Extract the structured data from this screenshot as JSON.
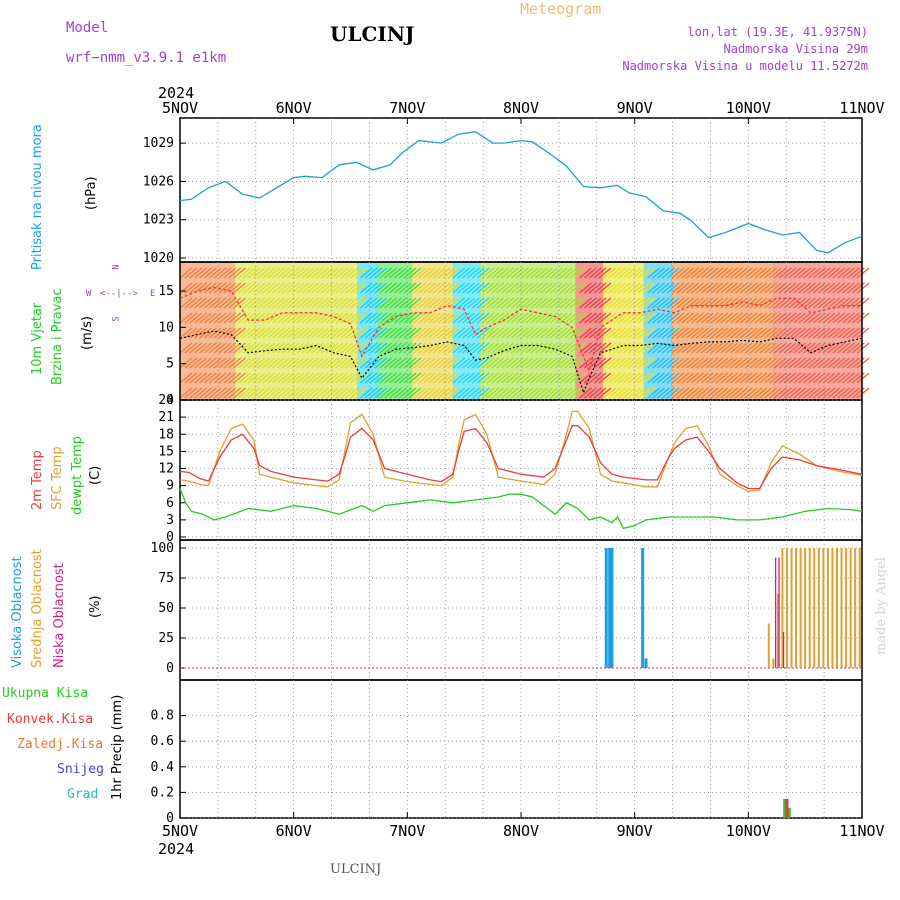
{
  "header": {
    "model_label": "Model",
    "model_name": "wrf−nmm_v3.9.1  e1km",
    "station": "ULCINJ",
    "meteogram": "Meteogram",
    "lonlat": "lon,lat (19.3E, 41.9375N)",
    "elev": "Nadmorska Visina 29m",
    "elev_model": "Nadmorska Visina u modelu 11.5272m",
    "year_top": "2024",
    "year_bottom": "2024",
    "footer_station": "ULCINJ",
    "made_by": "made by Angel"
  },
  "colors": {
    "pressure": "#1a9fe0",
    "wind_speed": "#000000",
    "gust": "#e83c3c",
    "temp2m": "#e83c3c",
    "sfc_temp": "#e0a030",
    "dewpt": "#22cc22",
    "cloud_high": "#1a9fe0",
    "cloud_mid": "#e0a030",
    "cloud_low": "#cc2288",
    "precip_total": "#22cc22",
    "precip_conv": "#e83c3c",
    "model_purple": "#a040d0",
    "meteogram_gold": "#e8c070"
  },
  "side_labels": {
    "pressure": [
      "Pritisak na nivou mora",
      "(hPa)"
    ],
    "wind": [
      "10m Vjetar",
      "Brzina i Pravac",
      "(m/s)"
    ],
    "temp": [
      "2m Temp",
      "SFC Temp",
      "dewpt Temp",
      "(C)"
    ],
    "cloud": [
      "Visoka Oblacnost",
      "Srednja Oblacnost",
      "Niska Oblacnost",
      "(%)"
    ],
    "precip_legend": [
      "Ukupna Kisa",
      "Konvek.Kisa",
      "Zaledj.Kisa",
      "Snijeg",
      "Grad"
    ],
    "precip_axis": "1hr Precip (mm)",
    "compass": [
      "N",
      "W",
      "E",
      "S"
    ]
  },
  "chart_data": [
    {
      "type": "line",
      "panel": "pressure",
      "x_ticks": [
        "5NOV",
        "6NOV",
        "7NOV",
        "8NOV",
        "9NOV",
        "10NOV",
        "11NOV"
      ],
      "xlim": [
        0,
        6
      ],
      "ylim": [
        1020,
        1030.5
      ],
      "y_ticks": [
        1020,
        1023,
        1026,
        1029
      ],
      "series": [
        {
          "x": [
            0,
            0.1,
            0.25,
            0.4,
            0.55,
            0.7,
            0.85,
            1.0,
            1.1,
            1.25,
            1.4,
            1.55,
            1.7,
            1.85,
            1.95,
            2.1,
            2.3,
            2.45,
            2.6,
            2.75,
            2.85,
            3.0,
            3.1,
            3.25,
            3.4,
            3.55,
            3.7,
            3.85,
            3.95,
            4.1,
            4.25,
            4.4,
            4.5,
            4.65,
            4.8,
            5.0,
            5.15,
            5.3,
            5.45,
            5.6,
            5.7,
            5.85,
            6.0
          ],
          "y": [
            1024.5,
            1024.6,
            1025.5,
            1026.0,
            1025.0,
            1024.7,
            1025.5,
            1026.3,
            1026.4,
            1026.3,
            1027.3,
            1027.5,
            1026.9,
            1027.3,
            1028.2,
            1029.2,
            1029.0,
            1029.7,
            1029.9,
            1029.0,
            1029.0,
            1029.2,
            1029.1,
            1028.2,
            1027.2,
            1025.6,
            1025.5,
            1025.7,
            1025.1,
            1024.8,
            1023.7,
            1023.5,
            1022.9,
            1021.6,
            1022.0,
            1022.7,
            1022.2,
            1021.8,
            1022.0,
            1020.6,
            1020.4,
            1021.2,
            1021.7
          ]
        }
      ]
    },
    {
      "type": "line",
      "panel": "wind",
      "x_ticks": [
        "5NOV",
        "6NOV",
        "7NOV",
        "8NOV",
        "9NOV",
        "10NOV",
        "11NOV"
      ],
      "xlim": [
        0,
        6
      ],
      "ylim": [
        0,
        19
      ],
      "y_ticks": [
        0,
        5,
        10,
        15
      ],
      "series": [
        {
          "x": [
            0,
            0.15,
            0.3,
            0.45,
            0.6,
            0.75,
            0.9,
            1.05,
            1.2,
            1.35,
            1.5,
            1.6,
            1.75,
            1.9,
            2.05,
            2.2,
            2.35,
            2.5,
            2.6,
            2.7,
            2.85,
            3.0,
            3.15,
            3.3,
            3.45,
            3.55,
            3.6,
            3.7,
            3.8,
            3.9,
            4.05,
            4.2,
            4.35,
            4.5,
            4.65,
            4.8,
            4.95,
            5.1,
            5.25,
            5.4,
            5.55,
            5.7,
            5.85,
            6.0
          ],
          "y": [
            8.5,
            9.0,
            9.5,
            9.0,
            6.5,
            6.8,
            7.0,
            7.0,
            7.5,
            6.5,
            6.0,
            3.0,
            6.0,
            7.0,
            7.2,
            7.5,
            8.0,
            7.5,
            5.5,
            5.8,
            6.8,
            7.5,
            7.5,
            7.0,
            6.0,
            1.0,
            3.0,
            6.5,
            7.0,
            7.5,
            7.5,
            7.8,
            7.5,
            7.8,
            8.0,
            8.0,
            8.2,
            8.0,
            8.5,
            8.5,
            6.5,
            7.5,
            8.0,
            8.5
          ]
        },
        {
          "x": [
            0,
            0.15,
            0.3,
            0.45,
            0.6,
            0.75,
            0.9,
            1.05,
            1.2,
            1.35,
            1.5,
            1.6,
            1.75,
            1.9,
            2.05,
            2.2,
            2.35,
            2.5,
            2.6,
            2.7,
            2.85,
            3.0,
            3.15,
            3.3,
            3.45,
            3.55,
            3.6,
            3.7,
            3.8,
            3.9,
            4.05,
            4.2,
            4.35,
            4.5,
            4.65,
            4.8,
            4.95,
            5.1,
            5.25,
            5.4,
            5.55,
            5.7,
            5.85,
            6.0
          ],
          "y": [
            14,
            15,
            15.5,
            15,
            11,
            11,
            12,
            12,
            12,
            11.5,
            10.5,
            6,
            10,
            11.5,
            12,
            12,
            13,
            12.5,
            9,
            10,
            11,
            12.5,
            12,
            11.5,
            10,
            6,
            4,
            10,
            11,
            12,
            12,
            12.5,
            12,
            13,
            13,
            13,
            13.5,
            13,
            14,
            14,
            12,
            12.5,
            13,
            13
          ]
        }
      ]
    },
    {
      "type": "line",
      "panel": "temperature",
      "x_ticks": [
        "5NOV",
        "6NOV",
        "7NOV",
        "8NOV",
        "9NOV",
        "10NOV",
        "11NOV"
      ],
      "xlim": [
        0,
        6
      ],
      "ylim": [
        0,
        24
      ],
      "y_ticks": [
        0,
        3,
        6,
        9,
        12,
        15,
        18,
        21,
        24
      ],
      "series": [
        {
          "x": [
            0,
            0.08,
            0.18,
            0.25,
            0.35,
            0.45,
            0.55,
            0.65,
            0.7,
            0.8,
            1.0,
            1.2,
            1.3,
            1.4,
            1.45,
            1.5,
            1.6,
            1.7,
            1.8,
            2.0,
            2.2,
            2.3,
            2.4,
            2.45,
            2.5,
            2.6,
            2.7,
            2.8,
            3.0,
            3.2,
            3.3,
            3.4,
            3.45,
            3.5,
            3.6,
            3.7,
            3.8,
            3.9,
            4.1,
            4.2,
            4.3,
            4.35,
            4.45,
            4.55,
            4.65,
            4.75,
            4.9,
            5.0,
            5.1,
            5.2,
            5.3,
            5.45,
            5.6,
            5.8,
            6.0
          ],
          "y": [
            11.5,
            11.3,
            10.2,
            9.8,
            14,
            17,
            18,
            15.5,
            12.5,
            11.5,
            10.5,
            10,
            9.8,
            11,
            14,
            17.5,
            19,
            17,
            12,
            11,
            10,
            9.7,
            11,
            15,
            18.5,
            19,
            16.5,
            12,
            11,
            10.5,
            12,
            17,
            19.5,
            19.5,
            17.5,
            13,
            11,
            10.5,
            10,
            10,
            14,
            15.5,
            17,
            17.5,
            15,
            12,
            9.5,
            8.5,
            8.5,
            12,
            14,
            13.5,
            12.5,
            11.8,
            11
          ]
        },
        {
          "x": [
            0,
            0.08,
            0.18,
            0.25,
            0.35,
            0.45,
            0.55,
            0.65,
            0.7,
            0.8,
            1.0,
            1.2,
            1.3,
            1.4,
            1.45,
            1.5,
            1.6,
            1.7,
            1.8,
            2.0,
            2.2,
            2.3,
            2.4,
            2.45,
            2.5,
            2.6,
            2.7,
            2.8,
            3.0,
            3.2,
            3.3,
            3.4,
            3.45,
            3.5,
            3.6,
            3.7,
            3.8,
            3.9,
            4.1,
            4.2,
            4.3,
            4.35,
            4.45,
            4.55,
            4.65,
            4.75,
            4.9,
            5.0,
            5.1,
            5.2,
            5.3,
            5.45,
            5.6,
            5.8,
            6.0
          ],
          "y": [
            10,
            9.8,
            9.2,
            9,
            15,
            19,
            19.8,
            17,
            11,
            10.5,
            9.5,
            9,
            8.8,
            10,
            15,
            20,
            21.5,
            18,
            10.5,
            9.7,
            9.2,
            9,
            10.5,
            16,
            20.5,
            21.5,
            18,
            10.5,
            9.8,
            9.2,
            11,
            18,
            22,
            22,
            19,
            11,
            9.8,
            9.5,
            8.8,
            8.8,
            14,
            16.5,
            19,
            19.5,
            16,
            11,
            9,
            8,
            8.3,
            13,
            16,
            14.5,
            12.5,
            11.5,
            10.8
          ]
        },
        {
          "x": [
            0,
            0.05,
            0.1,
            0.2,
            0.3,
            0.4,
            0.6,
            0.8,
            1.0,
            1.2,
            1.3,
            1.4,
            1.6,
            1.7,
            1.8,
            2.0,
            2.2,
            2.4,
            2.6,
            2.8,
            2.9,
            3.0,
            3.1,
            3.2,
            3.3,
            3.4,
            3.5,
            3.6,
            3.7,
            3.8,
            3.85,
            3.9,
            4.0,
            4.1,
            4.3,
            4.5,
            4.7,
            4.9,
            5.1,
            5.3,
            5.5,
            5.7,
            5.9,
            6.0
          ],
          "y": [
            8.5,
            6,
            4.5,
            4,
            3,
            3.5,
            5,
            4.5,
            5.5,
            5,
            4.5,
            4,
            5.5,
            4.5,
            5.5,
            6,
            6.5,
            6,
            6.5,
            7,
            7.5,
            7.5,
            7,
            5.5,
            4,
            6,
            5,
            3,
            3.5,
            2.5,
            3.5,
            1.5,
            2,
            3,
            3.5,
            3.5,
            3.5,
            3,
            3,
            3.5,
            4.5,
            5,
            4.8,
            4.5
          ]
        }
      ]
    },
    {
      "type": "bar",
      "panel": "cloud_cover",
      "x_ticks": [
        "5NOV",
        "6NOV",
        "7NOV",
        "8NOV",
        "9NOV",
        "10NOV",
        "11NOV"
      ],
      "xlim": [
        0,
        6
      ],
      "ylim": [
        0,
        100
      ],
      "y_ticks": [
        0,
        25,
        50,
        75,
        100
      ],
      "series": [
        {
          "x": [
            3.75,
            3.78,
            3.8,
            4.07,
            4.1
          ],
          "values": [
            100,
            100,
            100,
            100,
            8
          ]
        },
        {
          "x": [
            5.18,
            5.22,
            5.26,
            5.3,
            5.34,
            5.38,
            5.42,
            5.46,
            5.5,
            5.54,
            5.58,
            5.62,
            5.66,
            5.7,
            5.74,
            5.78,
            5.82,
            5.86,
            5.9,
            5.94,
            5.98
          ],
          "values": [
            37,
            8,
            62,
            100,
            100,
            100,
            100,
            100,
            100,
            100,
            100,
            100,
            100,
            100,
            100,
            100,
            100,
            100,
            100,
            100,
            100
          ]
        },
        {
          "x": [
            5.24,
            5.27,
            5.31
          ],
          "values": [
            92,
            92,
            30
          ]
        }
      ]
    },
    {
      "type": "bar",
      "panel": "precipitation",
      "x_ticks": [
        "5NOV",
        "6NOV",
        "7NOV",
        "8NOV",
        "9NOV",
        "10NOV",
        "11NOV"
      ],
      "xlim": [
        0,
        6
      ],
      "ylim": [
        0,
        1.0
      ],
      "y_ticks": [
        0,
        0.2,
        0.4,
        0.6,
        0.8
      ],
      "series": [
        {
          "x": [
            5.32,
            5.36
          ],
          "values": [
            0.15,
            0.08
          ]
        },
        {
          "x": [
            5.34
          ],
          "values": [
            0.15
          ]
        }
      ]
    }
  ]
}
